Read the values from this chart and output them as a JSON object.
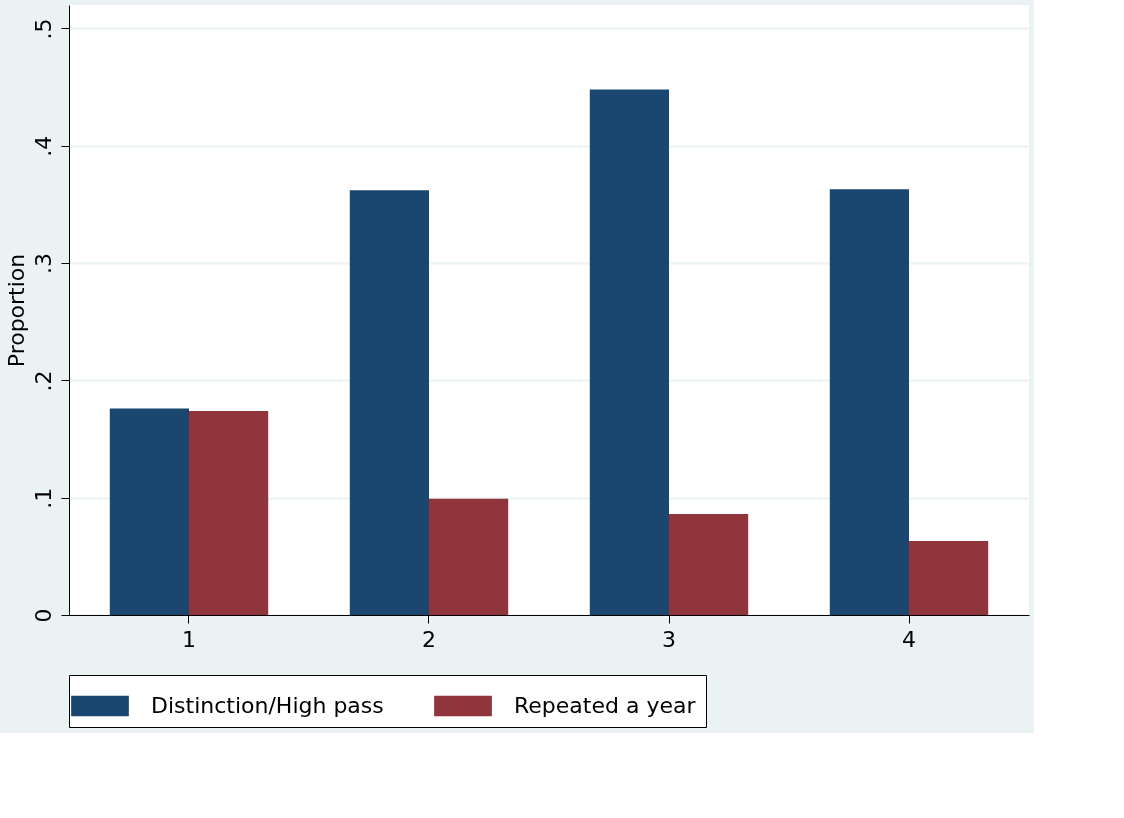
{
  "chart_data": {
    "type": "bar",
    "ylabel": "Proportion",
    "categories": [
      "1",
      "2",
      "3",
      "4"
    ],
    "series": [
      {
        "name": "Distinction/High pass",
        "color": "#1a476f",
        "values": [
          0.176,
          0.362,
          0.448,
          0.363
        ]
      },
      {
        "name": "Repeated a year",
        "color": "#90353b",
        "values": [
          0.174,
          0.099,
          0.086,
          0.063
        ]
      }
    ],
    "ylim": [
      0,
      0.52
    ],
    "yticks": [
      0,
      {
        "value": 0.1,
        "label": ".1"
      },
      {
        "value": 0.2,
        "label": ".2"
      },
      {
        "value": 0.3,
        "label": ".3"
      },
      {
        "value": 0.4,
        "label": ".4"
      },
      {
        "value": 0.5,
        "label": ".5"
      }
    ],
    "grid": "y",
    "legend": "bottom"
  }
}
